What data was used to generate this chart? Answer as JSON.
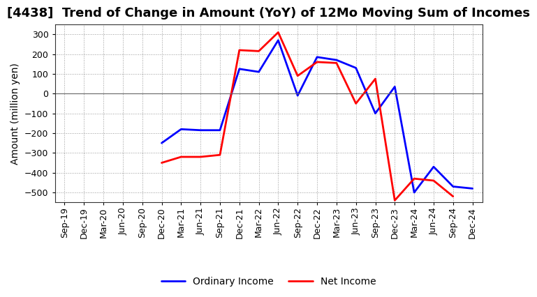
{
  "title": "[4438]  Trend of Change in Amount (YoY) of 12Mo Moving Sum of Incomes",
  "ylabel": "Amount (million yen)",
  "x_labels": [
    "Sep-19",
    "Dec-19",
    "Mar-20",
    "Jun-20",
    "Sep-20",
    "Dec-20",
    "Mar-21",
    "Jun-21",
    "Sep-21",
    "Dec-21",
    "Mar-22",
    "Jun-22",
    "Sep-22",
    "Dec-22",
    "Mar-23",
    "Jun-23",
    "Sep-23",
    "Dec-23",
    "Mar-24",
    "Jun-24",
    "Sep-24",
    "Dec-24"
  ],
  "ordinary_income": [
    null,
    null,
    null,
    null,
    null,
    -250,
    -180,
    -185,
    -185,
    125,
    110,
    270,
    -10,
    185,
    170,
    130,
    -100,
    35,
    -500,
    -370,
    -470,
    -480
  ],
  "net_income": [
    null,
    null,
    null,
    null,
    null,
    -350,
    -320,
    -320,
    -310,
    220,
    215,
    310,
    90,
    160,
    155,
    -50,
    75,
    -540,
    -430,
    -440,
    -520,
    null
  ],
  "ordinary_color": "#0000ff",
  "net_color": "#ff0000",
  "ylim": [
    -550,
    350
  ],
  "yticks": [
    -500,
    -400,
    -300,
    -200,
    -100,
    0,
    100,
    200,
    300
  ],
  "background_color": "#ffffff",
  "grid_color": "#999999",
  "legend_ordinary": "Ordinary Income",
  "legend_net": "Net Income",
  "title_fontsize": 13,
  "ylabel_fontsize": 10,
  "tick_fontsize": 9,
  "legend_fontsize": 10
}
